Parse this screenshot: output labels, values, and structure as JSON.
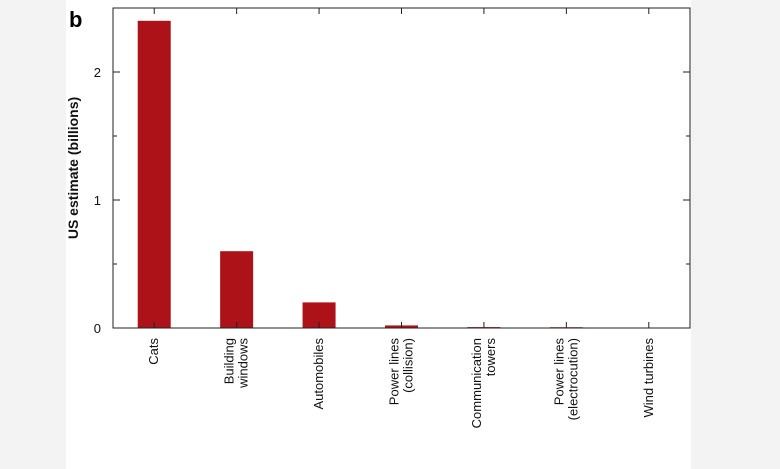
{
  "panel_letter": "b",
  "chart_data": {
    "type": "bar",
    "categories": [
      [
        "Cats"
      ],
      [
        "Building",
        "windows"
      ],
      [
        "Automobiles"
      ],
      [
        "Power lines",
        "(collision)"
      ],
      [
        "Communication",
        "towers"
      ],
      [
        "Power lines",
        "(electrocution)"
      ],
      [
        "Wind turbines"
      ]
    ],
    "values": [
      2.4,
      0.6,
      0.2,
      0.02,
      0.007,
      0.006,
      0.0003
    ],
    "ylabel": "US estimate (billions)",
    "xlabel": "",
    "ylim": [
      0,
      2.5
    ],
    "yticks_major": [
      0,
      1,
      2
    ],
    "yticks_minor": [
      0.5,
      1.5,
      2.5
    ],
    "grid": false,
    "bar_color": "#ad1219"
  }
}
